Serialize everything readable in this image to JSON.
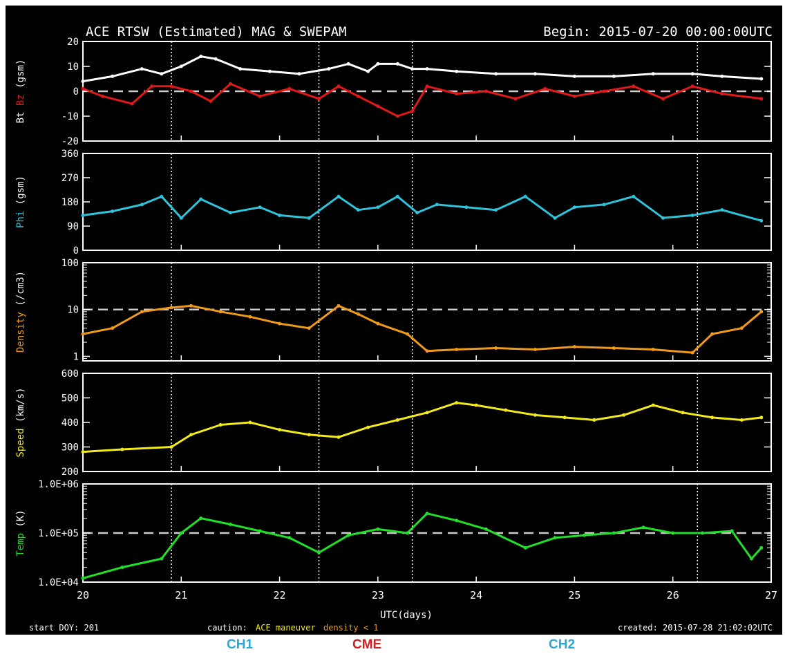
{
  "header": {
    "title": "ACE RTSW (Estimated) MAG & SWEPAM",
    "begin": "Begin: 2015-07-20 00:00:00UTC"
  },
  "footer": {
    "start_doy": "start DOY: 201",
    "caution": "caution:",
    "caution_maneuver": "ACE maneuver",
    "caution_density": "density < 1",
    "created": "created: 2015-07-28 21:02:02UTC",
    "xlabel": "UTC(days)"
  },
  "annotations": {
    "ch1": "CH1",
    "cme": "CME",
    "ch2": "CH2"
  },
  "colors": {
    "background": "#000000",
    "axes": "#ffffff",
    "bt": "#ffffff",
    "bz": "#e01818",
    "phi": "#2ec4dc",
    "density": "#f09a1a",
    "speed": "#f2ea1a",
    "temp": "#22e02a",
    "ch_label": "#2aa7d6",
    "cme_label": "#d01f1f"
  },
  "chart_data": {
    "type": "line",
    "x_axis": {
      "label": "UTC(days)",
      "range": [
        20,
        27
      ],
      "ticks": [
        "20",
        "21",
        "22",
        "23",
        "24",
        "25",
        "26",
        "27"
      ]
    },
    "event_markers_days": [
      20.9,
      22.4,
      23.35,
      26.25
    ],
    "panels": [
      {
        "key": "mag",
        "ylabel_parts": [
          "Bt",
          "Bz",
          "(gsm)"
        ],
        "ylim": [
          -20,
          20
        ],
        "ticks": [
          "20",
          "10",
          "0",
          "-10",
          "-20"
        ],
        "tick_values": [
          20,
          10,
          0,
          -10,
          -20
        ],
        "dashed_line": 0,
        "scale": "linear",
        "series": [
          {
            "name": "Bt",
            "color_key": "bt",
            "x": [
              20.0,
              20.3,
              20.6,
              20.8,
              21.0,
              21.2,
              21.35,
              21.6,
              21.9,
              22.2,
              22.5,
              22.7,
              22.9,
              23.0,
              23.2,
              23.35,
              23.5,
              23.8,
              24.2,
              24.6,
              25.0,
              25.4,
              25.8,
              26.2,
              26.5,
              26.9
            ],
            "y": [
              4,
              6,
              9,
              7,
              10,
              14,
              13,
              9,
              8,
              7,
              9,
              11,
              8,
              11,
              11,
              9,
              9,
              8,
              7,
              7,
              6,
              6,
              7,
              7,
              6,
              5
            ]
          },
          {
            "name": "Bz",
            "color_key": "bz",
            "x": [
              20.0,
              20.2,
              20.5,
              20.7,
              20.9,
              21.1,
              21.3,
              21.5,
              21.8,
              22.1,
              22.4,
              22.6,
              22.8,
              23.0,
              23.2,
              23.35,
              23.5,
              23.8,
              24.1,
              24.4,
              24.7,
              25.0,
              25.3,
              25.6,
              25.9,
              26.2,
              26.5,
              26.9
            ],
            "y": [
              1,
              -2,
              -5,
              2,
              2,
              0,
              -4,
              3,
              -2,
              1,
              -3,
              2,
              -2,
              -6,
              -10,
              -8,
              2,
              -1,
              0,
              -3,
              1,
              -2,
              0,
              2,
              -3,
              2,
              -1,
              -3
            ]
          }
        ]
      },
      {
        "key": "phi",
        "ylabel_parts": [
          "Phi",
          "(gsm)"
        ],
        "ylim": [
          0,
          360
        ],
        "ticks": [
          "360",
          "270",
          "180",
          "90",
          "0"
        ],
        "tick_values": [
          360,
          270,
          180,
          90,
          0
        ],
        "scale": "linear",
        "series": [
          {
            "name": "Phi",
            "color_key": "phi",
            "x": [
              20.0,
              20.3,
              20.6,
              20.8,
              21.0,
              21.2,
              21.5,
              21.8,
              22.0,
              22.3,
              22.6,
              22.8,
              23.0,
              23.2,
              23.4,
              23.6,
              23.9,
              24.2,
              24.5,
              24.8,
              25.0,
              25.3,
              25.6,
              25.9,
              26.2,
              26.5,
              26.9
            ],
            "y": [
              130,
              145,
              170,
              200,
              120,
              190,
              140,
              160,
              130,
              120,
              200,
              150,
              160,
              200,
              140,
              170,
              160,
              150,
              200,
              120,
              160,
              170,
              200,
              120,
              130,
              150,
              110
            ]
          }
        ]
      },
      {
        "key": "density",
        "ylabel_parts": [
          "Density",
          "(/cm3)"
        ],
        "ylim": [
          0.8,
          100
        ],
        "ticks": [
          "100",
          "10",
          "1"
        ],
        "tick_values": [
          100,
          10,
          1
        ],
        "dashed_line": 10,
        "scale": "log",
        "series": [
          {
            "name": "Density",
            "color_key": "density",
            "x": [
              20.0,
              20.3,
              20.6,
              20.9,
              21.1,
              21.4,
              21.7,
              22.0,
              22.3,
              22.6,
              22.8,
              23.0,
              23.3,
              23.5,
              23.8,
              24.2,
              24.6,
              25.0,
              25.4,
              25.8,
              26.2,
              26.4,
              26.7,
              26.9
            ],
            "y": [
              3,
              4,
              9,
              11,
              12,
              9,
              7,
              5,
              4,
              12,
              8,
              5,
              3,
              1.3,
              1.4,
              1.5,
              1.4,
              1.6,
              1.5,
              1.4,
              1.2,
              3,
              4,
              9
            ]
          }
        ]
      },
      {
        "key": "speed",
        "ylabel_parts": [
          "Speed",
          "(km/s)"
        ],
        "ylim": [
          200,
          600
        ],
        "ticks": [
          "600",
          "500",
          "400",
          "300",
          "200"
        ],
        "tick_values": [
          600,
          500,
          400,
          300,
          200
        ],
        "scale": "linear",
        "series": [
          {
            "name": "Speed",
            "color_key": "speed",
            "x": [
              20.0,
              20.4,
              20.9,
              21.1,
              21.4,
              21.7,
              22.0,
              22.3,
              22.6,
              22.9,
              23.2,
              23.5,
              23.8,
              24.0,
              24.3,
              24.6,
              24.9,
              25.2,
              25.5,
              25.8,
              26.1,
              26.4,
              26.7,
              26.9
            ],
            "y": [
              280,
              290,
              300,
              350,
              390,
              400,
              370,
              350,
              340,
              380,
              410,
              440,
              480,
              470,
              450,
              430,
              420,
              410,
              430,
              470,
              440,
              420,
              410,
              420
            ]
          }
        ]
      },
      {
        "key": "temp",
        "ylabel_parts": [
          "Temp",
          "(K)"
        ],
        "ylim": [
          10000,
          1000000
        ],
        "ticks": [
          "1.0E+06",
          "1.0E+05",
          "1.0E+04"
        ],
        "tick_values": [
          1000000,
          100000,
          10000
        ],
        "dashed_line": 100000,
        "scale": "log",
        "series": [
          {
            "name": "Temp",
            "color_key": "temp",
            "x": [
              20.0,
              20.4,
              20.8,
              21.0,
              21.2,
              21.5,
              21.8,
              22.1,
              22.4,
              22.7,
              23.0,
              23.3,
              23.5,
              23.8,
              24.1,
              24.5,
              24.8,
              25.1,
              25.4,
              25.7,
              26.0,
              26.3,
              26.6,
              26.8,
              26.9
            ],
            "y": [
              12000,
              20000,
              30000,
              100000,
              200000,
              150000,
              110000,
              80000,
              40000,
              90000,
              120000,
              100000,
              250000,
              180000,
              120000,
              50000,
              80000,
              90000,
              100000,
              130000,
              100000,
              100000,
              110000,
              30000,
              50000
            ]
          }
        ]
      }
    ]
  }
}
